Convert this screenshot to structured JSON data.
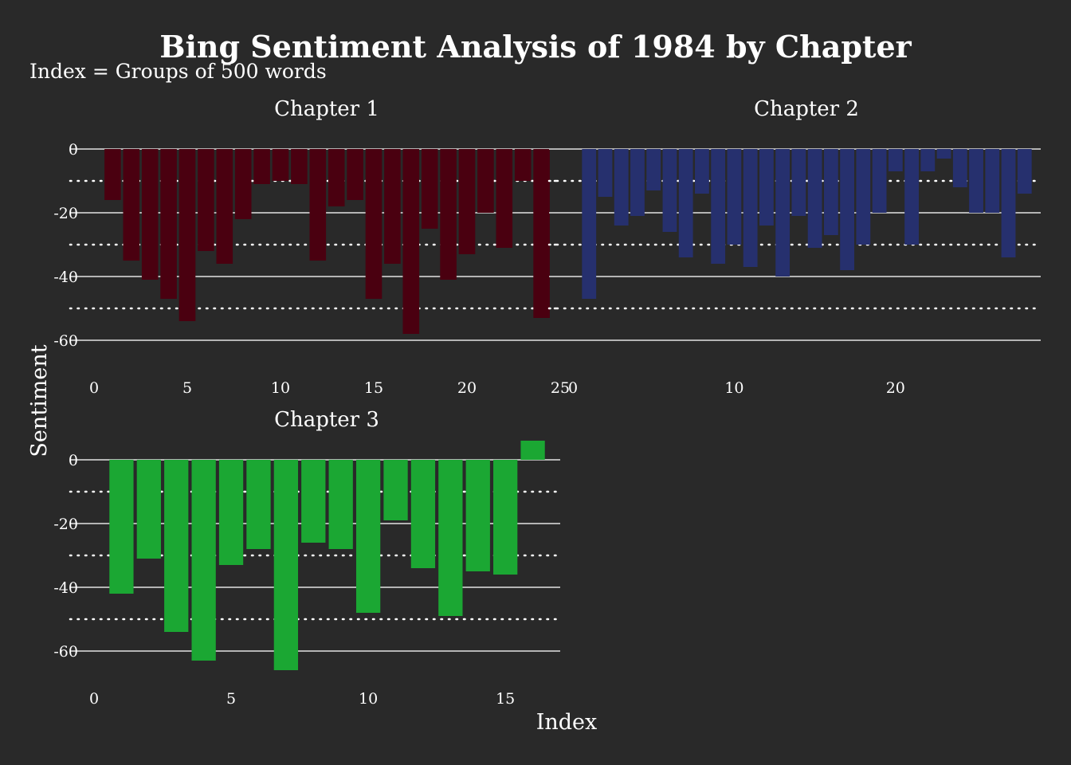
{
  "chart_data": {
    "type": "bar",
    "title": "Bing Sentiment Analysis of 1984 by Chapter",
    "subtitle": "Index = Groups of 500 words",
    "xlabel": "Index",
    "ylabel": "Sentiment",
    "grid": true,
    "facets": [
      {
        "name": "Chapter 1",
        "color": "#4a0010",
        "x": [
          1,
          2,
          3,
          4,
          5,
          6,
          7,
          8,
          9,
          10,
          11,
          12,
          13,
          14,
          15,
          16,
          17,
          18,
          19,
          20,
          21,
          22,
          23,
          24
        ],
        "values": [
          -16,
          -35,
          -41,
          -47,
          -54,
          -32,
          -36,
          -22,
          -11,
          -10,
          -11,
          -35,
          -18,
          -16,
          -47,
          -36,
          -58,
          -25,
          -41,
          -33,
          -20,
          -31,
          -10,
          -53
        ],
        "xlim": [
          0,
          25
        ],
        "x_ticks": [
          0,
          5,
          10,
          15,
          20,
          25
        ],
        "ylim": [
          -70,
          5
        ],
        "y_ticks": [
          0,
          -20,
          -40,
          -60
        ]
      },
      {
        "name": "Chapter 2",
        "color": "#26306e",
        "x": [
          1,
          2,
          3,
          4,
          5,
          6,
          7,
          8,
          9,
          10,
          11,
          12,
          13,
          14,
          15,
          16,
          17,
          18,
          19,
          20,
          21,
          22,
          23,
          24,
          25,
          26,
          27,
          28
        ],
        "values": [
          -47,
          -15,
          -24,
          -21,
          -13,
          -26,
          -34,
          -14,
          -36,
          -30,
          -37,
          -24,
          -40,
          -21,
          -31,
          -27,
          -38,
          -30,
          -20,
          -7,
          -30,
          -7,
          -3,
          -12,
          -20,
          -20,
          -34,
          -14
        ],
        "xlim": [
          0,
          29
        ],
        "x_ticks": [
          0,
          10,
          20
        ],
        "ylim": [
          -70,
          5
        ],
        "y_ticks": [
          0,
          -20,
          -40,
          -60
        ]
      },
      {
        "name": "Chapter 3",
        "color": "#1ba733",
        "x": [
          1,
          2,
          3,
          4,
          5,
          6,
          7,
          8,
          9,
          10,
          11,
          12,
          13,
          14,
          15,
          16
        ],
        "values": [
          -42,
          -31,
          -54,
          -63,
          -33,
          -28,
          -66,
          -26,
          -28,
          -48,
          -19,
          -34,
          -49,
          -35,
          -36,
          6
        ],
        "xlim": [
          0,
          17
        ],
        "x_ticks": [
          0,
          5,
          10,
          15
        ],
        "ylim": [
          -70,
          5
        ],
        "y_ticks": [
          0,
          -20,
          -40,
          -60
        ]
      }
    ]
  }
}
